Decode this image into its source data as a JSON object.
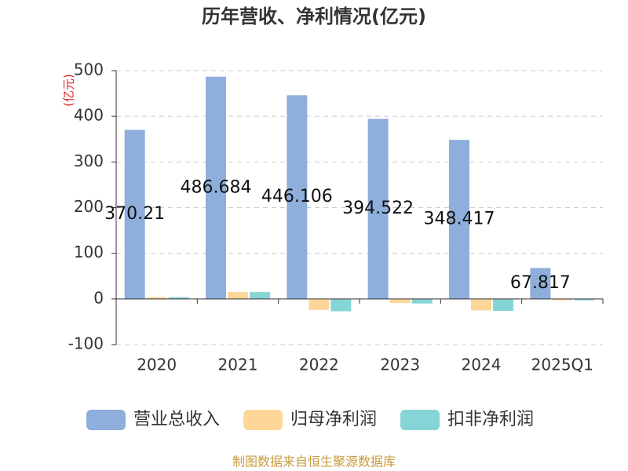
{
  "chart_data": {
    "type": "bar",
    "title": "历年营收、净利情况(亿元)",
    "y_label": "(亿元)",
    "source": "制图数据来自恒生聚源数据库",
    "categories": [
      "2020",
      "2021",
      "2022",
      "2023",
      "2024",
      "2025Q1"
    ],
    "series": [
      {
        "name": "营业总收入",
        "color": "#8eaedb",
        "values": [
          370.21,
          486.684,
          446.106,
          394.522,
          348.417,
          67.817
        ],
        "labels": true
      },
      {
        "name": "归母净利润",
        "color": "#fdd698",
        "values": [
          4,
          15,
          -24,
          -9,
          -25,
          -3
        ]
      },
      {
        "name": "扣非净利润",
        "color": "#86d5d6",
        "values": [
          4,
          15,
          -27,
          -10,
          -26,
          -3
        ]
      }
    ],
    "ylim": [
      -100,
      500
    ],
    "yticks": [
      -100,
      0,
      100,
      200,
      300,
      400,
      500
    ],
    "grid": true,
    "legend": "bottom"
  }
}
